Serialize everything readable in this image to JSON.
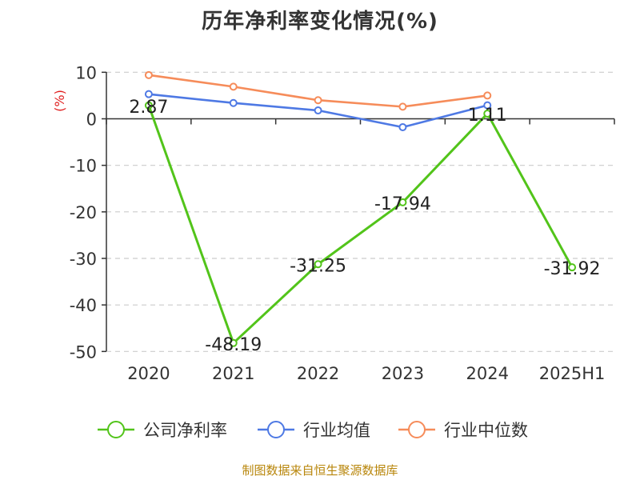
{
  "chart_data": {
    "type": "line",
    "title": "历年净利率变化情况(%)",
    "ylabel": "(%)",
    "categories": [
      "2020",
      "2021",
      "2022",
      "2023",
      "2024",
      "2025H1"
    ],
    "ylim": [
      -50,
      10
    ],
    "yticks": [
      10,
      0,
      -10,
      -20,
      -30,
      -40,
      -50
    ],
    "grid": true,
    "legend_position": "bottom",
    "series": [
      {
        "name": "公司净利率",
        "color": "#52c41a",
        "values": [
          2.87,
          -48.19,
          -31.25,
          -17.94,
          1.11,
          -31.92
        ],
        "labels": [
          "2.87",
          "-48.19",
          "-31.25",
          "-17.94",
          "1.11",
          "-31.92"
        ]
      },
      {
        "name": "行业均值",
        "color": "#4e79e4",
        "values": [
          5.3,
          3.4,
          1.8,
          -1.8,
          2.9,
          null
        ]
      },
      {
        "name": "行业中位数",
        "color": "#f68c5a",
        "values": [
          9.4,
          6.9,
          4.0,
          2.6,
          5.0,
          null
        ]
      }
    ]
  },
  "source": "制图数据来自恒生聚源数据库"
}
